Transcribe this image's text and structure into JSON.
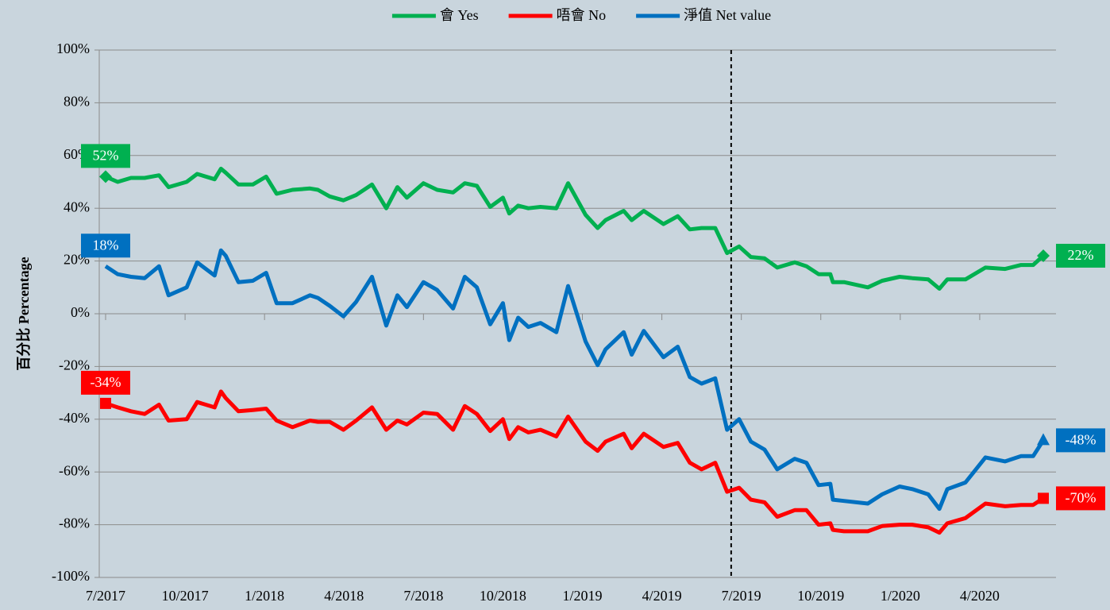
{
  "chart_data": {
    "type": "line",
    "y_label": "百分比 Percentage",
    "x": [
      2017.5,
      2017.538,
      2017.58,
      2017.623,
      2017.668,
      2017.698,
      2017.755,
      2017.788,
      2017.843,
      2017.863,
      2017.878,
      2017.918,
      2017.963,
      2018.005,
      2018.038,
      2018.088,
      2018.143,
      2018.168,
      2018.205,
      2018.248,
      2018.288,
      2018.338,
      2018.383,
      2018.418,
      2018.448,
      2018.5,
      2018.543,
      2018.593,
      2018.63,
      2018.668,
      2018.71,
      2018.75,
      2018.77,
      2018.798,
      2018.83,
      2018.868,
      2018.918,
      2018.955,
      2019.01,
      2019.048,
      2019.073,
      2019.13,
      2019.155,
      2019.193,
      2019.255,
      2019.3,
      2019.338,
      2019.375,
      2019.418,
      2019.455,
      2019.493,
      2019.53,
      2019.573,
      2019.613,
      2019.668,
      2019.705,
      2019.743,
      2019.78,
      2019.788,
      2019.823,
      2019.898,
      2019.943,
      2019.998,
      2020.038,
      2020.088,
      2020.123,
      2020.148,
      2020.205,
      2020.268,
      2020.33,
      2020.38,
      2020.418,
      2020.45
    ],
    "xlim": [
      2017.48,
      2020.49
    ],
    "xticks": [
      {
        "value": 2017.5,
        "label": "7/2017"
      },
      {
        "value": 2017.75,
        "label": "10/2017"
      },
      {
        "value": 2018,
        "label": "1/2018"
      },
      {
        "value": 2018.25,
        "label": "4/2018"
      },
      {
        "value": 2018.5,
        "label": "7/2018"
      },
      {
        "value": 2018.75,
        "label": "10/2018"
      },
      {
        "value": 2019,
        "label": "1/2019"
      },
      {
        "value": 2019.25,
        "label": "4/2019"
      },
      {
        "value": 2019.5,
        "label": "7/2019"
      },
      {
        "value": 2019.75,
        "label": "10/2019"
      },
      {
        "value": 2020,
        "label": "1/2020"
      },
      {
        "value": 2020.25,
        "label": "4/2020"
      }
    ],
    "ylim": [
      -100,
      100
    ],
    "yticks": [
      {
        "value": -100,
        "label": "-100%"
      },
      {
        "value": -80,
        "label": "-80%"
      },
      {
        "value": -60,
        "label": "-60%"
      },
      {
        "value": -40,
        "label": "-40%"
      },
      {
        "value": -20,
        "label": "-20%"
      },
      {
        "value": 0,
        "label": "0%"
      },
      {
        "value": 20,
        "label": "20%"
      },
      {
        "value": 40,
        "label": "40%"
      },
      {
        "value": 60,
        "label": "60%"
      },
      {
        "value": 80,
        "label": "80%"
      },
      {
        "value": 100,
        "label": "100%"
      }
    ],
    "grid": true,
    "vline": 2019.468,
    "legend": "top",
    "series": [
      {
        "name": "會 Yes",
        "color": "#00b050",
        "marker": "diamond",
        "values": [
          52,
          50,
          51.5,
          51.5,
          52.5,
          48,
          50,
          53,
          51,
          55,
          53.5,
          49,
          49,
          52,
          45.5,
          47,
          47.5,
          47,
          44.5,
          43,
          45,
          49,
          40,
          48,
          44,
          49.5,
          47,
          46,
          49.5,
          48.5,
          40.5,
          44,
          38,
          41,
          40,
          40.5,
          40,
          49.5,
          37.5,
          32.5,
          35.5,
          39,
          35.5,
          39,
          34,
          37,
          32,
          32.5,
          32.5,
          23,
          25.5,
          21.5,
          21,
          17.5,
          19.5,
          18,
          15,
          15,
          12,
          12,
          10,
          12.5,
          14,
          13.5,
          13,
          9.5,
          13,
          13,
          17.5,
          17,
          18.5,
          18.5,
          22
        ],
        "value_labels": [
          "52%",
          null,
          null,
          null,
          null,
          null,
          null,
          null,
          null,
          null,
          null,
          null,
          null,
          null,
          null,
          null,
          null,
          null,
          null,
          null,
          null,
          null,
          null,
          null,
          null,
          null,
          null,
          null,
          null,
          null,
          null,
          null,
          null,
          null,
          null,
          null,
          null,
          null,
          null,
          null,
          null,
          null,
          null,
          null,
          null,
          null,
          null,
          null,
          null,
          null,
          null,
          null,
          null,
          null,
          null,
          null,
          null,
          null,
          null,
          null,
          null,
          null,
          null,
          null,
          null,
          null,
          null,
          null,
          null,
          null,
          null,
          null,
          "22%"
        ]
      },
      {
        "name": "唔會 No",
        "color": "#ff0000",
        "marker": "square",
        "values": [
          -34,
          -35.5,
          -37,
          -38,
          -34.5,
          -40.5,
          -40,
          -33.5,
          -35.5,
          -29.5,
          -32,
          -37,
          -36.5,
          -36,
          -40.5,
          -43,
          -40.5,
          -41,
          -41,
          -44,
          -40.5,
          -35.5,
          -44,
          -40.5,
          -42,
          -37.5,
          -38,
          -44,
          -35,
          -38,
          -44.5,
          -40,
          -47.5,
          -43,
          -45,
          -44,
          -46.5,
          -39,
          -48.5,
          -52,
          -48.5,
          -45.5,
          -51,
          -45.5,
          -50.5,
          -49,
          -56.5,
          -59,
          -56.5,
          -67.5,
          -66,
          -70.5,
          -71.5,
          -77,
          -74.5,
          -74.5,
          -80,
          -79.5,
          -82,
          -82.5,
          -82.5,
          -80.5,
          -80,
          -80,
          -81,
          -83,
          -79.5,
          -77.5,
          -72,
          -73,
          -72.5,
          -72.5,
          -70
        ],
        "value_labels": [
          "-34%",
          null,
          null,
          null,
          null,
          null,
          null,
          null,
          null,
          null,
          null,
          null,
          null,
          null,
          null,
          null,
          null,
          null,
          null,
          null,
          null,
          null,
          null,
          null,
          null,
          null,
          null,
          null,
          null,
          null,
          null,
          null,
          null,
          null,
          null,
          null,
          null,
          null,
          null,
          null,
          null,
          null,
          null,
          null,
          null,
          null,
          null,
          null,
          null,
          null,
          null,
          null,
          null,
          null,
          null,
          null,
          null,
          null,
          null,
          null,
          null,
          null,
          null,
          null,
          null,
          null,
          null,
          null,
          null,
          null,
          null,
          null,
          "-70%"
        ]
      },
      {
        "name": "淨值 Net value",
        "color": "#0070c0",
        "marker": "triangle",
        "values": [
          18,
          15,
          14,
          13.5,
          18,
          7,
          10,
          19.5,
          14.5,
          24,
          22,
          12,
          12.5,
          15.5,
          4,
          4,
          7,
          6,
          3,
          -1,
          4.5,
          14,
          -4.5,
          7,
          2.5,
          12,
          9,
          2,
          14,
          10,
          -4,
          4,
          -10,
          -1.5,
          -5,
          -3.5,
          -7,
          10.5,
          -10.5,
          -19.5,
          -13.5,
          -7,
          -15.5,
          -6.5,
          -16.5,
          -12.5,
          -24,
          -26.5,
          -24.5,
          -44,
          -40,
          -48.5,
          -51.5,
          -59,
          -55,
          -56.5,
          -65,
          -64.5,
          -70.5,
          -71,
          -72,
          -68.5,
          -65.5,
          -66.5,
          -68.5,
          -74,
          -66.5,
          -64,
          -54.5,
          -56,
          -54,
          -54,
          -48
        ],
        "value_labels": [
          "18%",
          null,
          null,
          null,
          null,
          null,
          null,
          null,
          null,
          null,
          null,
          null,
          null,
          null,
          null,
          null,
          null,
          null,
          null,
          null,
          null,
          null,
          null,
          null,
          null,
          null,
          null,
          null,
          null,
          null,
          null,
          null,
          null,
          null,
          null,
          null,
          null,
          null,
          null,
          null,
          null,
          null,
          null,
          null,
          null,
          null,
          null,
          null,
          null,
          null,
          null,
          null,
          null,
          null,
          null,
          null,
          null,
          null,
          null,
          null,
          null,
          null,
          null,
          null,
          null,
          null,
          null,
          null,
          null,
          null,
          null,
          null,
          "-48%"
        ]
      }
    ]
  }
}
